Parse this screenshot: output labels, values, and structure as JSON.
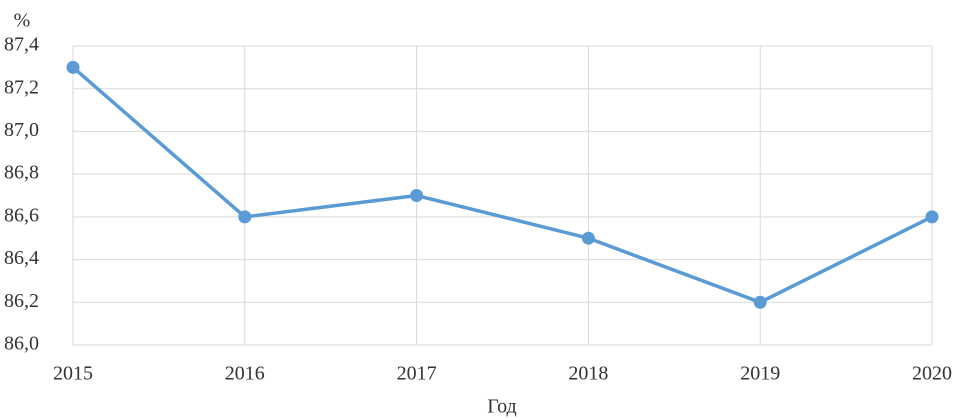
{
  "chart_data": {
    "type": "line",
    "y_axis_label": "%",
    "x_axis_label": "Год",
    "categories": [
      "2015",
      "2016",
      "2017",
      "2018",
      "2019",
      "2020"
    ],
    "values": [
      87.3,
      86.6,
      86.7,
      86.5,
      86.2,
      86.6
    ],
    "color": "#5b9bd5",
    "ylim": [
      86.0,
      87.4
    ],
    "yticks": [
      {
        "value": 86.0,
        "label": "86,0"
      },
      {
        "value": 86.2,
        "label": "86,2"
      },
      {
        "value": 86.4,
        "label": "86,4"
      },
      {
        "value": 86.6,
        "label": "86,6"
      },
      {
        "value": 86.8,
        "label": "86,8"
      },
      {
        "value": 87.0,
        "label": "87,0"
      },
      {
        "value": 87.2,
        "label": "87,2"
      },
      {
        "value": 87.4,
        "label": "87,4"
      }
    ],
    "grid": true
  }
}
